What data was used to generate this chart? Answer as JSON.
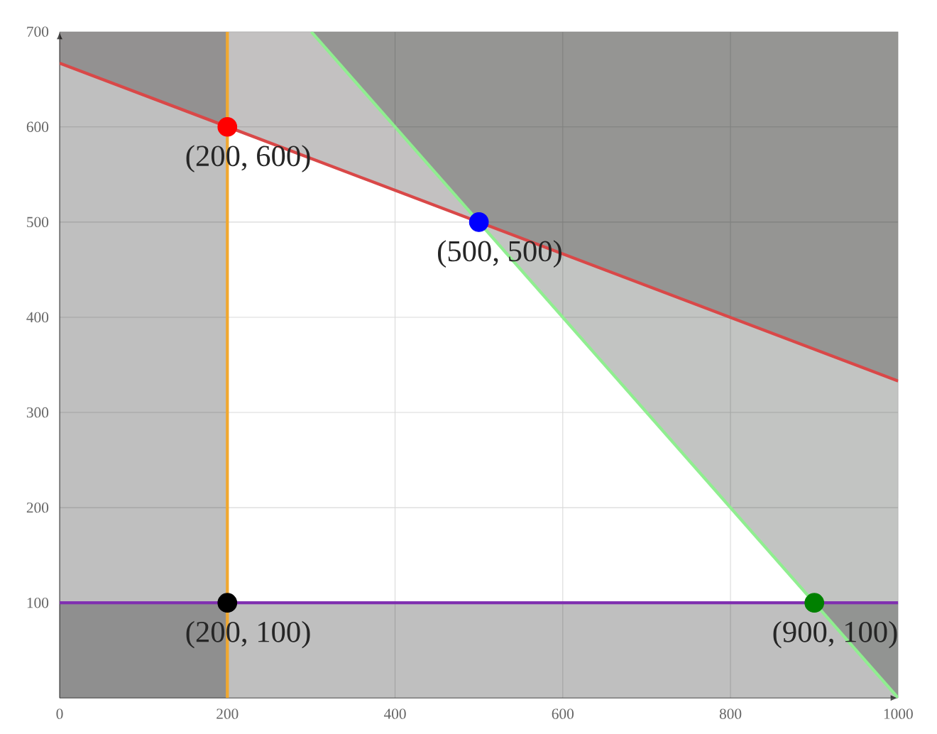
{
  "chart_data": {
    "type": "line",
    "xlim": [
      0,
      1000
    ],
    "ylim": [
      0,
      700
    ],
    "xticks": [
      0,
      200,
      400,
      600,
      800,
      1000
    ],
    "yticks": [
      100,
      200,
      300,
      400,
      500,
      600,
      700
    ],
    "grid": true,
    "marker": "circle",
    "line_style": "solid",
    "bands": [
      {
        "axis": "x",
        "from": 0,
        "to": 200,
        "color": "#000000"
      },
      {
        "axis": "y",
        "from": 0,
        "to": 100,
        "color": "#000000"
      }
    ],
    "series": [
      {
        "color": "#d94848",
        "marker": "none",
        "x": [
          0,
          1000
        ],
        "values": [
          667,
          333
        ],
        "lower": [
          667,
          333
        ],
        "upper": [
          700,
          700
        ]
      },
      {
        "color": "#90ee90",
        "marker": "none",
        "x": [
          300,
          1000
        ],
        "values": [
          700,
          0
        ],
        "lower": [
          700,
          0
        ],
        "upper": [
          700,
          700
        ]
      },
      {
        "color": "#f0a830",
        "marker": "none",
        "x": [
          200,
          200
        ],
        "values": [
          0,
          700
        ]
      },
      {
        "color": "#8030b0",
        "marker": "none",
        "x": [
          0,
          1000
        ],
        "values": [
          100,
          100
        ]
      },
      {
        "type": "scatter",
        "color": "#ff0000",
        "x": [
          200
        ],
        "values": [
          600
        ]
      },
      {
        "type": "scatter",
        "color": "#0000ff",
        "x": [
          500
        ],
        "values": [
          500
        ]
      },
      {
        "type": "scatter",
        "color": "#000000",
        "x": [
          200
        ],
        "values": [
          100
        ]
      },
      {
        "type": "scatter",
        "color": "#008000",
        "x": [
          900
        ],
        "values": [
          100
        ]
      }
    ],
    "annotations": [
      {
        "text": "(200, 600)",
        "x": 200,
        "y": 600
      },
      {
        "text": "(500, 500)",
        "x": 500,
        "y": 500
      },
      {
        "text": "(200, 100)",
        "x": 200,
        "y": 100
      },
      {
        "text": "(900, 100)",
        "x": 900,
        "y": 100
      }
    ]
  }
}
